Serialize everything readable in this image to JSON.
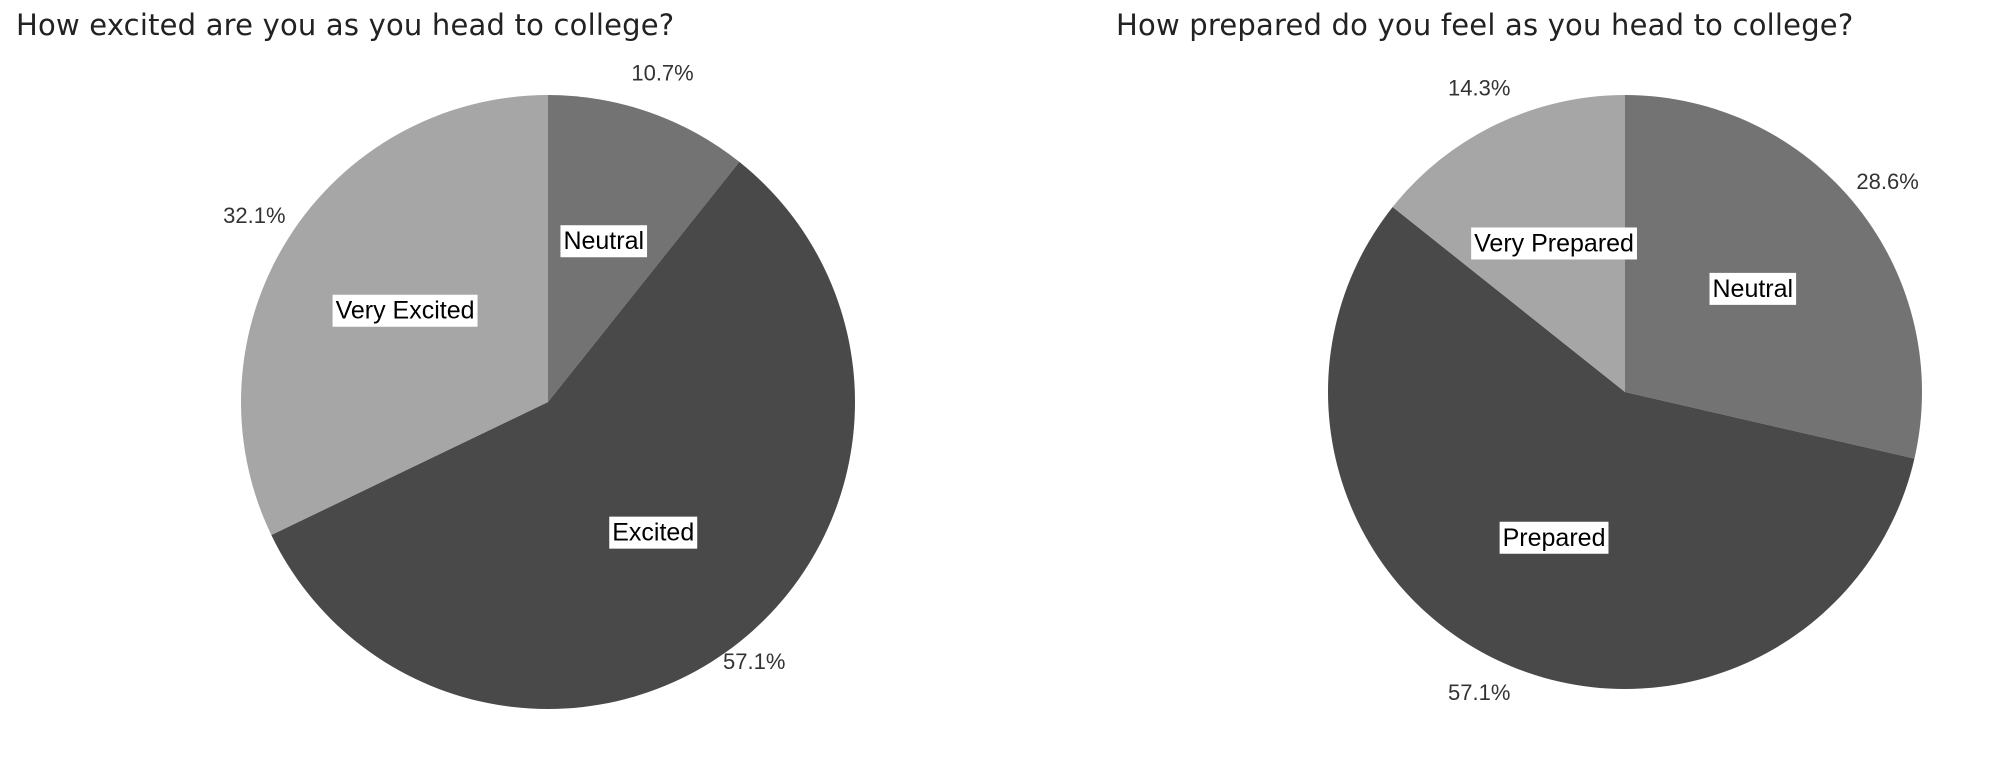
{
  "chart_data": [
    {
      "type": "pie",
      "title": "How excited are you as you head to college?",
      "slices": [
        {
          "label": "Neutral",
          "value": 10.7,
          "display": "10.7%",
          "color": "#737373"
        },
        {
          "label": "Excited",
          "value": 57.1,
          "display": "57.1%",
          "color": "#4a4949"
        },
        {
          "label": "Very Excited",
          "value": 32.1,
          "display": "32.1%",
          "color": "#a6a6a6"
        }
      ],
      "start_angle_deg": 0,
      "direction": "clockwise",
      "legend": "none"
    },
    {
      "type": "pie",
      "title": "How prepared do you feel as you head to college?",
      "slices": [
        {
          "label": "Neutral",
          "value": 28.6,
          "display": "28.6%",
          "color": "#737373"
        },
        {
          "label": "Prepared",
          "value": 57.1,
          "display": "57.1%",
          "color": "#4a4949"
        },
        {
          "label": "Very Prepared",
          "value": 14.3,
          "display": "14.3%",
          "color": "#a6a6a6"
        }
      ],
      "start_angle_deg": 0,
      "direction": "clockwise",
      "legend": "none"
    }
  ]
}
